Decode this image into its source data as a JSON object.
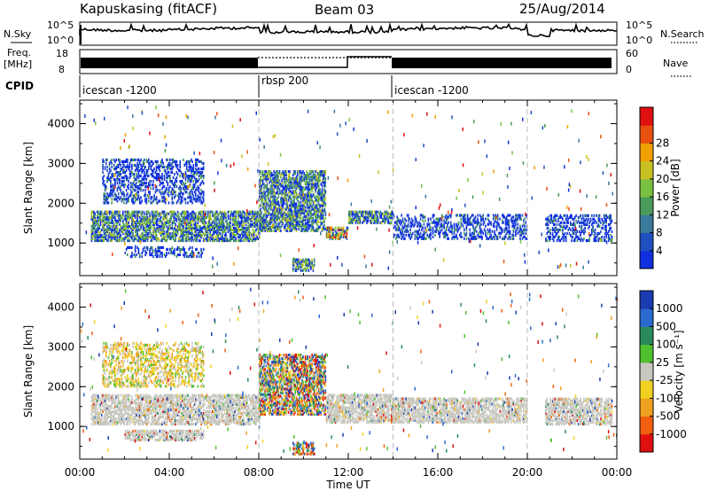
{
  "header": {
    "station": "Kapuskasing (fitACF)",
    "beam": "Beam 03",
    "date": "25/Aug/2014"
  },
  "panels": {
    "nsky_label": "N.Sky",
    "nsky_ticks": [
      "10^5",
      "10^0"
    ],
    "nsearch_label": "N.Search",
    "nsearch_ticks": [
      "10^5",
      "10^0"
    ],
    "freq_label": "Freq.",
    "freq_unit": "[MHz]",
    "freq_ticks": [
      "18",
      "8"
    ],
    "nave_label": "Nave",
    "nave_ticks": [
      "60",
      "0"
    ],
    "cpid_label": "CPID",
    "cpid_segments": [
      {
        "name": "icescan -1200",
        "start_hour": 0,
        "end_hour": 8
      },
      {
        "name": "rbsp 200",
        "start_hour": 8,
        "end_hour": 14
      },
      {
        "name": "icescan -1200",
        "start_hour": 14,
        "end_hour": 24
      }
    ]
  },
  "chart_data": [
    {
      "type": "heatmap",
      "title": "",
      "xlabel": "",
      "ylabel": "Slant Range [km]",
      "xlim": [
        0,
        24
      ],
      "ylim": [
        180,
        4590
      ],
      "y_ticks": [
        1000,
        2000,
        3000,
        4000
      ],
      "colorbar": {
        "label": "Power [dB]",
        "ticks": [
          "4",
          "8",
          "12",
          "16",
          "20",
          "24",
          "28"
        ],
        "colors": [
          "#1030e0",
          "#2050c0",
          "#3a7a9a",
          "#4a9a5a",
          "#7ac040",
          "#c8c020",
          "#f0a000",
          "#e85010",
          "#e01010"
        ]
      },
      "bands": [
        {
          "t0": 0.5,
          "t1": 8,
          "r0": 1050,
          "r1": 1800,
          "level": "moderate"
        },
        {
          "t0": 8,
          "t1": 11,
          "r0": 1300,
          "r1": 2800,
          "level": "moderate"
        },
        {
          "t0": 11,
          "t1": 12,
          "r0": 1100,
          "r1": 1400,
          "level": "strong"
        },
        {
          "t0": 12,
          "t1": 14,
          "r0": 1500,
          "r1": 1800,
          "level": "moderate"
        },
        {
          "t0": 14,
          "t1": 20,
          "r0": 1100,
          "r1": 1700,
          "level": "weak"
        },
        {
          "t0": 20.8,
          "t1": 23.8,
          "r0": 1050,
          "r1": 1700,
          "level": "weak"
        },
        {
          "t0": 2,
          "t1": 5.5,
          "r0": 650,
          "r1": 900,
          "level": "weak"
        },
        {
          "t0": 9.5,
          "t1": 10.5,
          "r0": 300,
          "r1": 600,
          "level": "moderate"
        },
        {
          "t0": 1,
          "t1": 5.5,
          "r0": 2000,
          "r1": 3100,
          "level": "weak"
        }
      ]
    },
    {
      "type": "heatmap",
      "title": "",
      "xlabel": "Time UT",
      "ylabel": "Slant Range [km]",
      "xlim": [
        0,
        24
      ],
      "ylim": [
        180,
        4590
      ],
      "x_ticks": [
        "00:00",
        "04:00",
        "08:00",
        "12:00",
        "16:00",
        "20:00",
        "00:00"
      ],
      "y_ticks": [
        1000,
        2000,
        3000,
        4000
      ],
      "colorbar": {
        "label": "Velocity [m s⁻¹]",
        "ticks": [
          "1000",
          "500",
          "100",
          "25",
          "-25",
          "-100",
          "-500",
          "-1000"
        ],
        "colors": [
          "#1a3cb0",
          "#2a6ad0",
          "#2a8a5a",
          "#50c030",
          "#c8c8c0",
          "#f0d020",
          "#f0a020",
          "#f06010",
          "#e01010"
        ]
      },
      "bands": [
        {
          "t0": 0.5,
          "t1": 8,
          "r0": 1050,
          "r1": 1800,
          "level": "ground"
        },
        {
          "t0": 8,
          "t1": 11,
          "r0": 1300,
          "r1": 2800,
          "level": "mixed"
        },
        {
          "t0": 11,
          "t1": 14,
          "r0": 1100,
          "r1": 1800,
          "level": "ground"
        },
        {
          "t0": 14,
          "t1": 20,
          "r0": 1100,
          "r1": 1700,
          "level": "ground"
        },
        {
          "t0": 20.8,
          "t1": 23.8,
          "r0": 1050,
          "r1": 1700,
          "level": "ground"
        },
        {
          "t0": 1,
          "t1": 5.5,
          "r0": 2000,
          "r1": 3100,
          "level": "neg"
        },
        {
          "t0": 2,
          "t1": 5.5,
          "r0": 650,
          "r1": 900,
          "level": "ground"
        },
        {
          "t0": 9.5,
          "t1": 10.5,
          "r0": 300,
          "r1": 600,
          "level": "mixed"
        }
      ]
    }
  ]
}
